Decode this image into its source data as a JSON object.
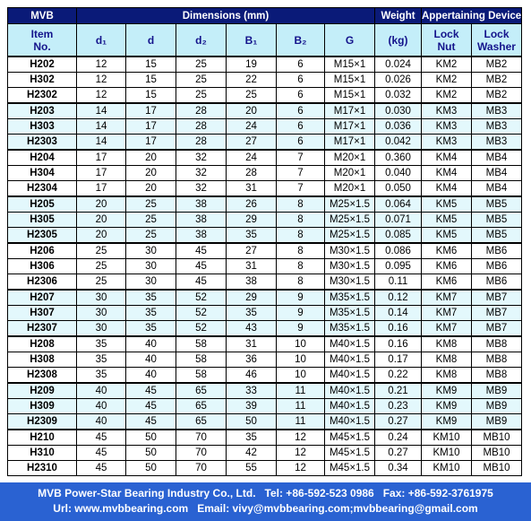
{
  "table": {
    "header_top": [
      "MVB",
      "Dimensions (mm)",
      "Weight",
      "Appertaining Device"
    ],
    "header": [
      "Item No.",
      "d₁",
      "d",
      "d₂",
      "B₁",
      "B₂",
      "G",
      "(kg)",
      "Lock Nut",
      "Lock Washer"
    ],
    "rows": [
      [
        "H202",
        "12",
        "15",
        "25",
        "19",
        "6",
        "M15×1",
        "0.024",
        "KM2",
        "MB2"
      ],
      [
        "H302",
        "12",
        "15",
        "25",
        "22",
        "6",
        "M15×1",
        "0.026",
        "KM2",
        "MB2"
      ],
      [
        "H2302",
        "12",
        "15",
        "25",
        "25",
        "6",
        "M15×1",
        "0.032",
        "KM2",
        "MB2"
      ],
      [
        "H203",
        "14",
        "17",
        "28",
        "20",
        "6",
        "M17×1",
        "0.030",
        "KM3",
        "MB3"
      ],
      [
        "H303",
        "14",
        "17",
        "28",
        "24",
        "6",
        "M17×1",
        "0.036",
        "KM3",
        "MB3"
      ],
      [
        "H2303",
        "14",
        "17",
        "28",
        "27",
        "6",
        "M17×1",
        "0.042",
        "KM3",
        "MB3"
      ],
      [
        "H204",
        "17",
        "20",
        "32",
        "24",
        "7",
        "M20×1",
        "0.360",
        "KM4",
        "MB4"
      ],
      [
        "H304",
        "17",
        "20",
        "32",
        "28",
        "7",
        "M20×1",
        "0.040",
        "KM4",
        "MB4"
      ],
      [
        "H2304",
        "17",
        "20",
        "32",
        "31",
        "7",
        "M20×1",
        "0.050",
        "KM4",
        "MB4"
      ],
      [
        "H205",
        "20",
        "25",
        "38",
        "26",
        "8",
        "M25×1.5",
        "0.064",
        "KM5",
        "MB5"
      ],
      [
        "H305",
        "20",
        "25",
        "38",
        "29",
        "8",
        "M25×1.5",
        "0.071",
        "KM5",
        "MB5"
      ],
      [
        "H2305",
        "20",
        "25",
        "38",
        "35",
        "8",
        "M25×1.5",
        "0.085",
        "KM5",
        "MB5"
      ],
      [
        "H206",
        "25",
        "30",
        "45",
        "27",
        "8",
        "M30×1.5",
        "0.086",
        "KM6",
        "MB6"
      ],
      [
        "H306",
        "25",
        "30",
        "45",
        "31",
        "8",
        "M30×1.5",
        "0.095",
        "KM6",
        "MB6"
      ],
      [
        "H2306",
        "25",
        "30",
        "45",
        "38",
        "8",
        "M30×1.5",
        "0.11",
        "KM6",
        "MB6"
      ],
      [
        "H207",
        "30",
        "35",
        "52",
        "29",
        "9",
        "M35×1.5",
        "0.12",
        "KM7",
        "MB7"
      ],
      [
        "H307",
        "30",
        "35",
        "52",
        "35",
        "9",
        "M35×1.5",
        "0.14",
        "KM7",
        "MB7"
      ],
      [
        "H2307",
        "30",
        "35",
        "52",
        "43",
        "9",
        "M35×1.5",
        "0.16",
        "KM7",
        "MB7"
      ],
      [
        "H208",
        "35",
        "40",
        "58",
        "31",
        "10",
        "M40×1.5",
        "0.16",
        "KM8",
        "MB8"
      ],
      [
        "H308",
        "35",
        "40",
        "58",
        "36",
        "10",
        "M40×1.5",
        "0.17",
        "KM8",
        "MB8"
      ],
      [
        "H2308",
        "35",
        "40",
        "58",
        "46",
        "10",
        "M40×1.5",
        "0.22",
        "KM8",
        "MB8"
      ],
      [
        "H209",
        "40",
        "45",
        "65",
        "33",
        "11",
        "M40×1.5",
        "0.21",
        "KM9",
        "MB9"
      ],
      [
        "H309",
        "40",
        "45",
        "65",
        "39",
        "11",
        "M40×1.5",
        "0.23",
        "KM9",
        "MB9"
      ],
      [
        "H2309",
        "40",
        "45",
        "65",
        "50",
        "11",
        "M40×1.5",
        "0.27",
        "KM9",
        "MB9"
      ],
      [
        "H210",
        "45",
        "50",
        "70",
        "35",
        "12",
        "M45×1.5",
        "0.24",
        "KM10",
        "MB10"
      ],
      [
        "H310",
        "45",
        "50",
        "70",
        "42",
        "12",
        "M45×1.5",
        "0.27",
        "KM10",
        "MB10"
      ],
      [
        "H2310",
        "45",
        "50",
        "70",
        "55",
        "12",
        "M45×1.5",
        "0.34",
        "KM10",
        "MB10"
      ]
    ]
  },
  "footer": {
    "line1": "MVB Power-Star Bearing Industry Co., Ltd.   Tel: +86-592-523 0986   Fax: +86-592-3761975",
    "line2": "Url: www.mvbbearing.com   Email: vivy@mvbbearing.com;mvbbearing@gmail.com"
  }
}
